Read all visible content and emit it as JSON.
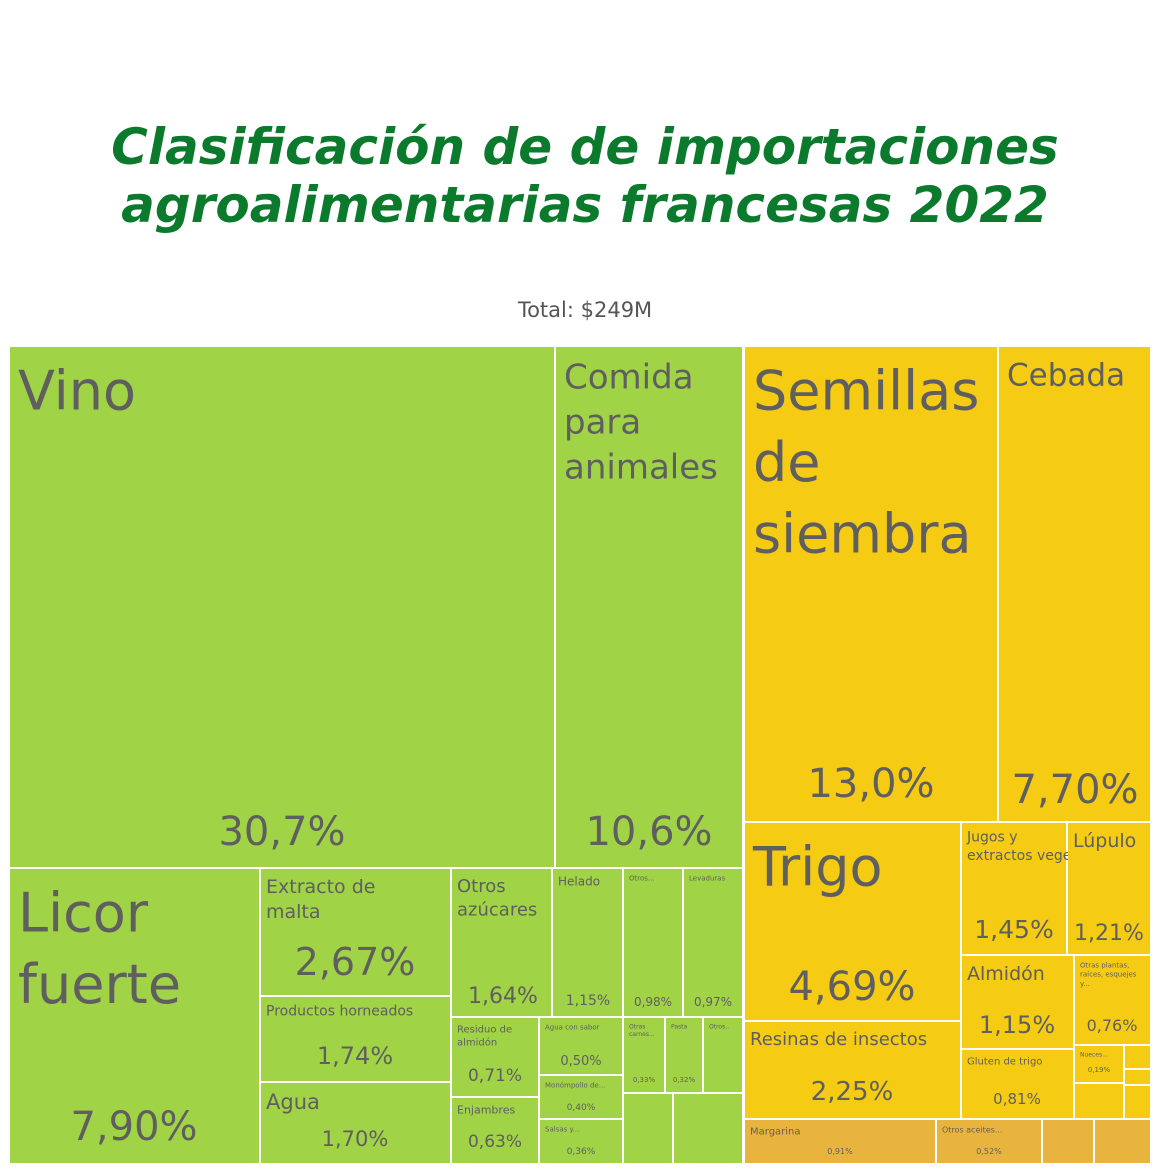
{
  "title": "Clasificación de de importaciones\nagroalimentarias francesas 2022",
  "subtitle": "Total: $249M",
  "colors": {
    "green_tile": "#a1d347",
    "yellow_tile": "#f5cb13",
    "orange_tile": "#e9b43d",
    "title_color": "#0b7a2c",
    "label_color": "#5f5f5f"
  },
  "chart_data": {
    "type": "treemap",
    "total": "$249M",
    "unit": "% of total",
    "groups": [
      {
        "color": "green",
        "items": [
          {
            "name": "Vino",
            "value": 30.7,
            "display": "30,7%"
          },
          {
            "name": "Comida para animales",
            "value": 10.6,
            "display": "10,6%"
          },
          {
            "name": "Licor fuerte",
            "value": 7.9,
            "display": "7,90%"
          },
          {
            "name": "Extracto de malta",
            "value": 2.67,
            "display": "2,67%"
          },
          {
            "name": "Productos horneados",
            "value": 1.74,
            "display": "1,74%"
          },
          {
            "name": "Agua",
            "value": 1.7,
            "display": "1,70%"
          },
          {
            "name": "Otros azúcares",
            "value": 1.64,
            "display": "1,64%"
          },
          {
            "name": "Helado",
            "value": 1.15,
            "display": "1,15%"
          },
          {
            "name": "Otros...",
            "value": 0.98,
            "display": "0,98%"
          },
          {
            "name": "Levaduras",
            "value": 0.97,
            "display": "0,97%"
          },
          {
            "name": "Residuo de almidón",
            "value": 0.71,
            "display": "0,71%"
          },
          {
            "name": "Agua con sabor",
            "value": 0.5,
            "display": "0,50%"
          },
          {
            "name": "Enjambres",
            "value": 0.63,
            "display": "0,63%"
          },
          {
            "name": "Monómpollo de...",
            "value": 0.4,
            "display": "0,40%"
          },
          {
            "name": "Salsas y...",
            "value": 0.36,
            "display": "0,36%"
          },
          {
            "name": "Otras carnes...",
            "value": 0.33,
            "display": "0,33%"
          },
          {
            "name": "Pasta",
            "value": 0.32,
            "display": "0,32%"
          },
          {
            "name": "Otros..",
            "value": null,
            "display": ""
          }
        ]
      },
      {
        "color": "yellow",
        "items": [
          {
            "name": "Semillas de siembra",
            "value": 13.0,
            "display": "13,0%"
          },
          {
            "name": "Cebada",
            "value": 7.7,
            "display": "7,70%"
          },
          {
            "name": "Trigo",
            "value": 4.69,
            "display": "4,69%"
          },
          {
            "name": "Resinas de insectos",
            "value": 2.25,
            "display": "2,25%"
          },
          {
            "name": "Jugos y extractos vegetales",
            "value": 1.45,
            "display": "1,45%"
          },
          {
            "name": "Lúpulo",
            "value": 1.21,
            "display": "1,21%"
          },
          {
            "name": "Almidón",
            "value": 1.15,
            "display": "1,15%"
          },
          {
            "name": "Otras plantas, raíces, esquejes y...",
            "value": 0.76,
            "display": "0,76%"
          },
          {
            "name": "Gluten de trigo",
            "value": 0.81,
            "display": "0,81%"
          },
          {
            "name": "Nueces...",
            "value": 0.19,
            "display": "0,19%"
          }
        ]
      },
      {
        "color": "orange",
        "items": [
          {
            "name": "Margarina",
            "value": 0.91,
            "display": "0,91%"
          },
          {
            "name": "Otros aceites...",
            "value": 0.52,
            "display": "0,52%"
          }
        ]
      }
    ]
  }
}
